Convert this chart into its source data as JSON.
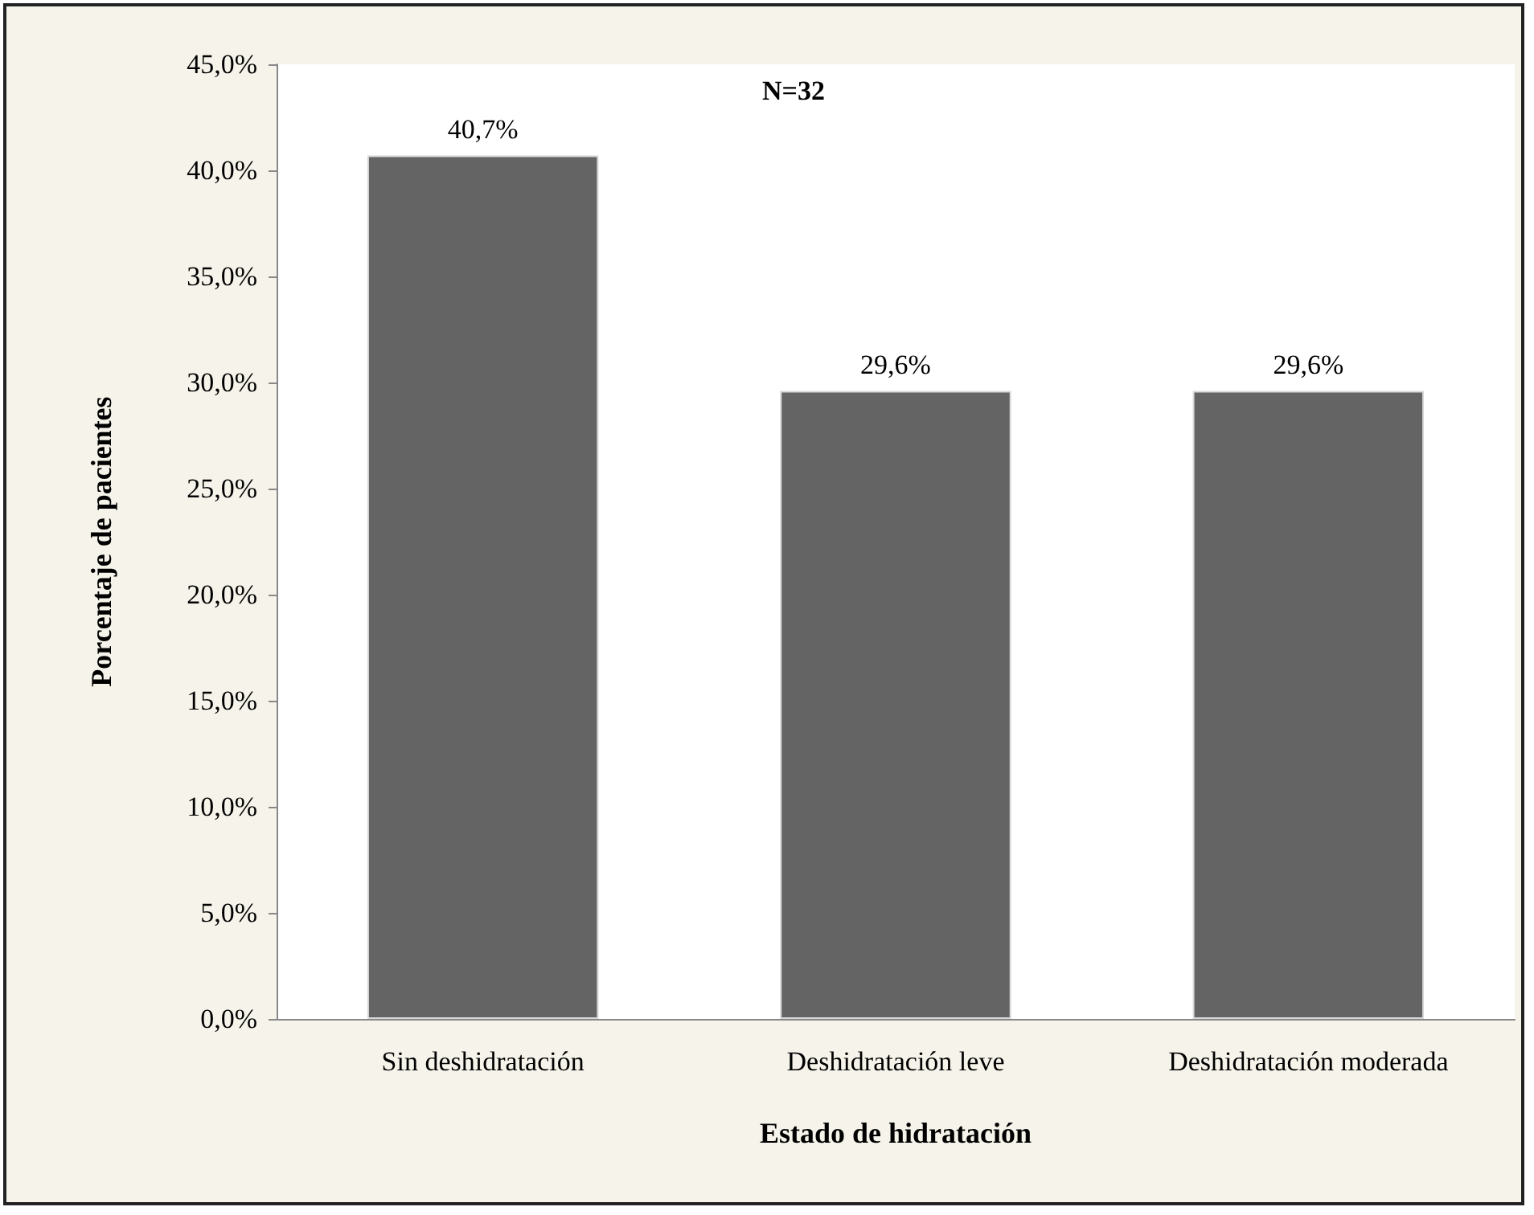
{
  "chart_data": {
    "type": "bar",
    "xlabel": "Estado de hidratación",
    "ylabel": "Porcentaje de pacientes",
    "categories": [
      "Sin deshidratación",
      "Deshidratación leve",
      "Deshidratación moderada"
    ],
    "values": [
      40.7,
      29.6,
      29.6
    ],
    "color": "#646464",
    "value_labels": [
      "40,7%",
      "29,6%",
      "29,6%"
    ],
    "ylim": [
      0,
      45
    ],
    "yticks": [
      {
        "value": 0,
        "label": "0,0%"
      },
      {
        "value": 5,
        "label": "5,0%"
      },
      {
        "value": 10,
        "label": "10,0%"
      },
      {
        "value": 15,
        "label": "15,0%"
      },
      {
        "value": 20,
        "label": "20,0%"
      },
      {
        "value": 25,
        "label": "25,0%"
      },
      {
        "value": 30,
        "label": "30,0%"
      },
      {
        "value": 35,
        "label": "35,0%"
      },
      {
        "value": 40,
        "label": "40,0%"
      },
      {
        "value": 45,
        "label": "45,0%"
      }
    ],
    "annotations": [
      "N=32"
    ],
    "grid": false
  }
}
